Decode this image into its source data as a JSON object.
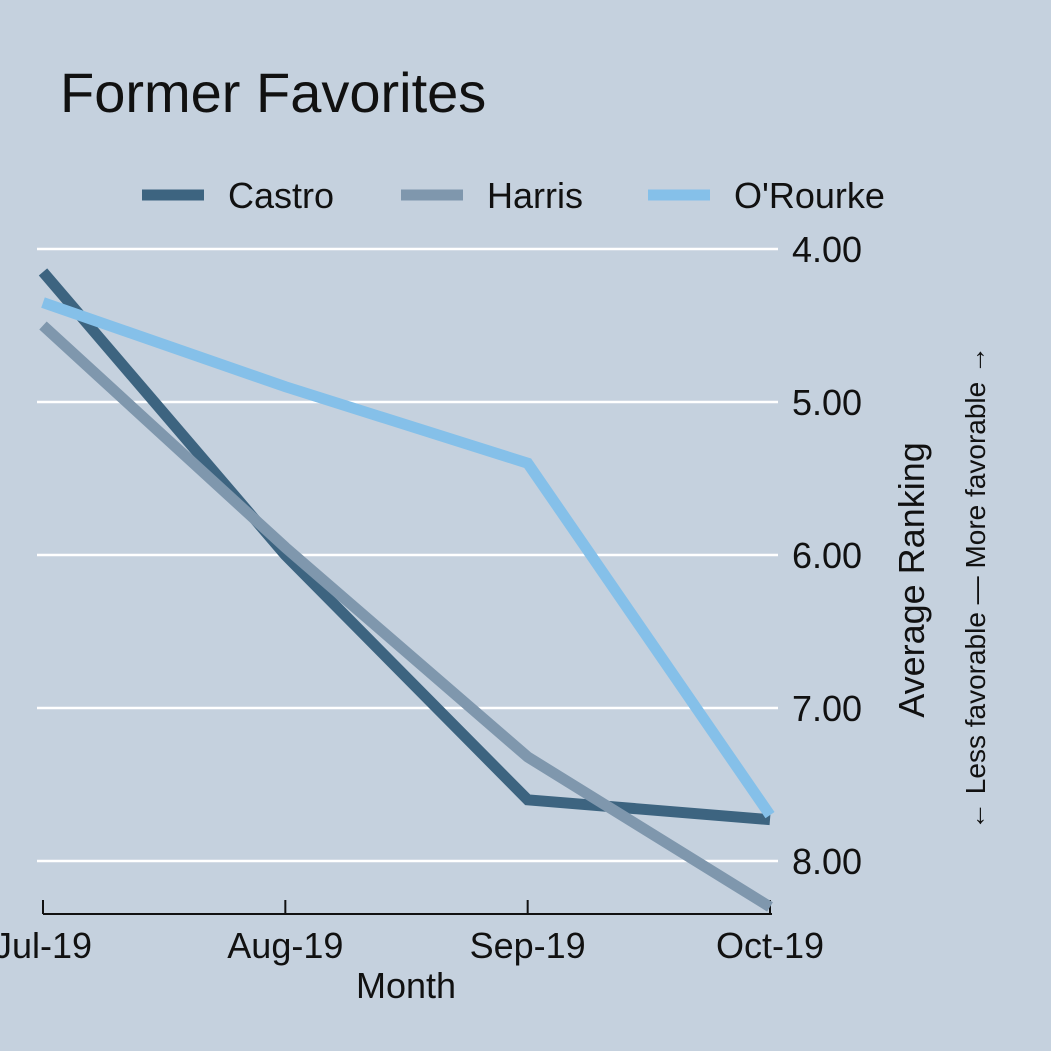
{
  "chart_data": {
    "type": "line",
    "title": "Former Favorites",
    "xlabel": "Month",
    "ylabel": "Average Ranking",
    "ylabel_note": "← Less favorable — More favorable →",
    "categories": [
      "Jul-19",
      "Aug-19",
      "Sep-19",
      "Oct-19"
    ],
    "y_ticks": [
      "4.00",
      "5.00",
      "6.00",
      "7.00",
      "8.00"
    ],
    "y_tick_values": [
      4,
      5,
      6,
      7,
      8
    ],
    "ylim": [
      8.35,
      3.9
    ],
    "y_inverted": true,
    "y_axis_position": "right",
    "grid": true,
    "legend_position": "top",
    "series": [
      {
        "name": "Castro",
        "color": "#3d6480",
        "values": [
          4.15,
          6.0,
          7.6,
          7.73
        ]
      },
      {
        "name": "Harris",
        "color": "#7f97ad",
        "values": [
          4.5,
          5.95,
          7.32,
          8.3
        ]
      },
      {
        "name": "O'Rourke",
        "color": "#85c0e9",
        "values": [
          4.35,
          4.9,
          5.4,
          7.7
        ]
      }
    ]
  }
}
